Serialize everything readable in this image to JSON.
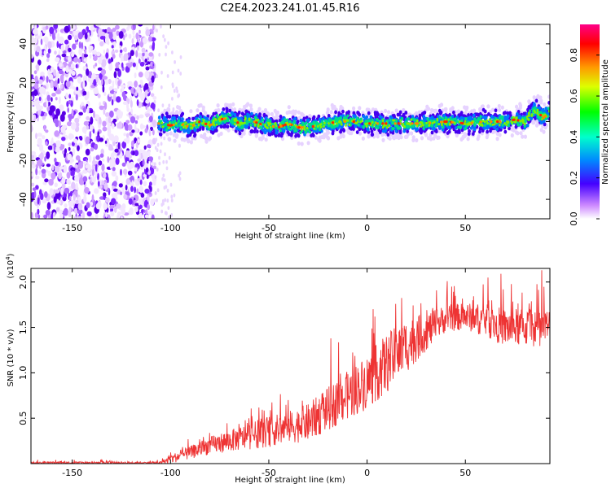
{
  "figure": {
    "title": "C2E4.2023.241.01.45.R16"
  },
  "chart_data": [
    {
      "type": "heatmap",
      "xlabel": "Height of straight line (km)",
      "ylabel": "Frequency (Hz)",
      "xlim": [
        -171,
        93
      ],
      "ylim": [
        -50,
        50
      ],
      "x_ticks": [
        -150,
        -100,
        -50,
        0,
        50
      ],
      "y_ticks": [
        -40,
        -20,
        0,
        20,
        40
      ],
      "x_tick_labels": [
        "-150",
        "-100",
        "-50",
        "0",
        "50"
      ],
      "y_tick_labels": [
        "-40",
        "-20",
        "0",
        "20",
        "40"
      ],
      "colorbar": {
        "label": "Normalized spectral amplitude",
        "range": [
          0,
          0.95
        ],
        "ticks": [
          0.0,
          0.2,
          0.4,
          0.6,
          0.8
        ],
        "tick_labels": [
          "0.0",
          "0.2",
          "0.4",
          "0.6",
          "0.8"
        ]
      },
      "noise_region_x": [
        -171,
        -108
      ],
      "ridge": {
        "x": [
          -106,
          -100,
          -95,
          -90,
          -85,
          -80,
          -75,
          -70,
          -65,
          -60,
          -55,
          -50,
          -45,
          -40,
          -35,
          -30,
          -25,
          -20,
          -15,
          -10,
          -5,
          0,
          10,
          20,
          30,
          40,
          50,
          60,
          65,
          70,
          75,
          80,
          85,
          90,
          93
        ],
        "y": [
          -1,
          -2,
          -1,
          -3,
          0,
          -2,
          1,
          2,
          -1,
          1,
          -1,
          -2,
          -3,
          -1,
          -3,
          -3,
          -2,
          -1,
          0,
          0,
          0,
          -1,
          -1,
          -1,
          -1,
          0,
          -1,
          0,
          0,
          0,
          1,
          0,
          6,
          2,
          5
        ]
      }
    },
    {
      "type": "line",
      "xlabel": "Height of straight line (km)",
      "ylabel": "SNR (10 * v/v)",
      "y_multiplier": "(x10",
      "y_multiplier_exp": "4",
      "xlim": [
        -171,
        93
      ],
      "ylim": [
        0,
        2.15
      ],
      "x_ticks": [
        -150,
        -100,
        -50,
        0,
        50
      ],
      "y_ticks": [
        0.5,
        1.0,
        1.5,
        2.0
      ],
      "x_tick_labels": [
        "-150",
        "-100",
        "-50",
        "0",
        "50"
      ],
      "y_tick_labels": [
        "0.5",
        "1.0",
        "1.5",
        "2.0"
      ],
      "color": "#ee3333",
      "envelope": {
        "x": [
          -171,
          -105,
          -100,
          -90,
          -80,
          -70,
          -60,
          -50,
          -40,
          -30,
          -20,
          -10,
          0,
          10,
          20,
          30,
          40,
          50,
          60,
          70,
          80,
          93
        ],
        "baseline": [
          0.01,
          0.01,
          0.05,
          0.12,
          0.2,
          0.25,
          0.3,
          0.35,
          0.4,
          0.45,
          0.6,
          0.75,
          0.9,
          1.1,
          1.3,
          1.45,
          1.6,
          1.62,
          1.58,
          1.5,
          1.5,
          1.5
        ],
        "spread": [
          0.02,
          0.02,
          0.08,
          0.12,
          0.16,
          0.2,
          0.24,
          0.28,
          0.3,
          0.35,
          0.4,
          0.45,
          0.5,
          0.55,
          0.5,
          0.35,
          0.25,
          0.25,
          0.3,
          0.35,
          0.35,
          0.35
        ]
      }
    }
  ]
}
